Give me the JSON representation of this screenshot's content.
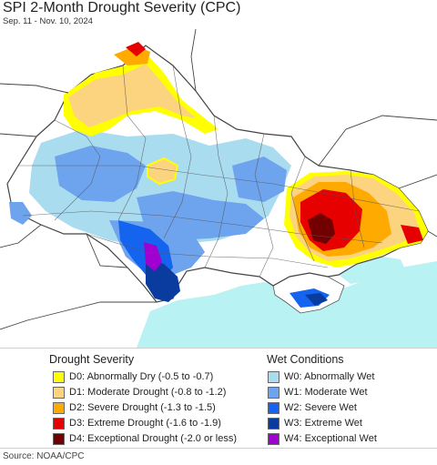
{
  "header": {
    "title": "SPI 2-Month Drought Severity (CPC)",
    "subtitle": "Sep. 11 - Nov. 10, 2024"
  },
  "colors": {
    "sea": "#b8f2f2",
    "land": "#ffffff",
    "borders": "#555555"
  },
  "legend": {
    "drought": {
      "heading": "Drought Severity",
      "items": [
        {
          "label": "D0: Abnormally Dry (-0.5 to -0.7)",
          "color": "#ffff00"
        },
        {
          "label": "D1: Moderate Drought (-0.8 to -1.2)",
          "color": "#fcd37f"
        },
        {
          "label": "D2: Severe Drought (-1.3 to -1.5)",
          "color": "#ffaa00"
        },
        {
          "label": "D3: Extreme Drought (-1.6 to -1.9)",
          "color": "#e60000"
        },
        {
          "label": "D4: Exceptional Drought (-2.0 or less)",
          "color": "#730000"
        }
      ]
    },
    "wet": {
      "heading": "Wet Conditions",
      "items": [
        {
          "label": "W0: Abnormally Wet",
          "color": "#aadcf0"
        },
        {
          "label": "W1: Moderate Wet",
          "color": "#6ea3ee"
        },
        {
          "label": "W2: Severe Wet",
          "color": "#1464f0"
        },
        {
          "label": "W3: Extreme Wet",
          "color": "#0a3ca0"
        },
        {
          "label": "W4: Exceptional Wet",
          "color": "#a000d0"
        }
      ]
    }
  },
  "footer": {
    "source": "Source: NOAA/CPC"
  }
}
